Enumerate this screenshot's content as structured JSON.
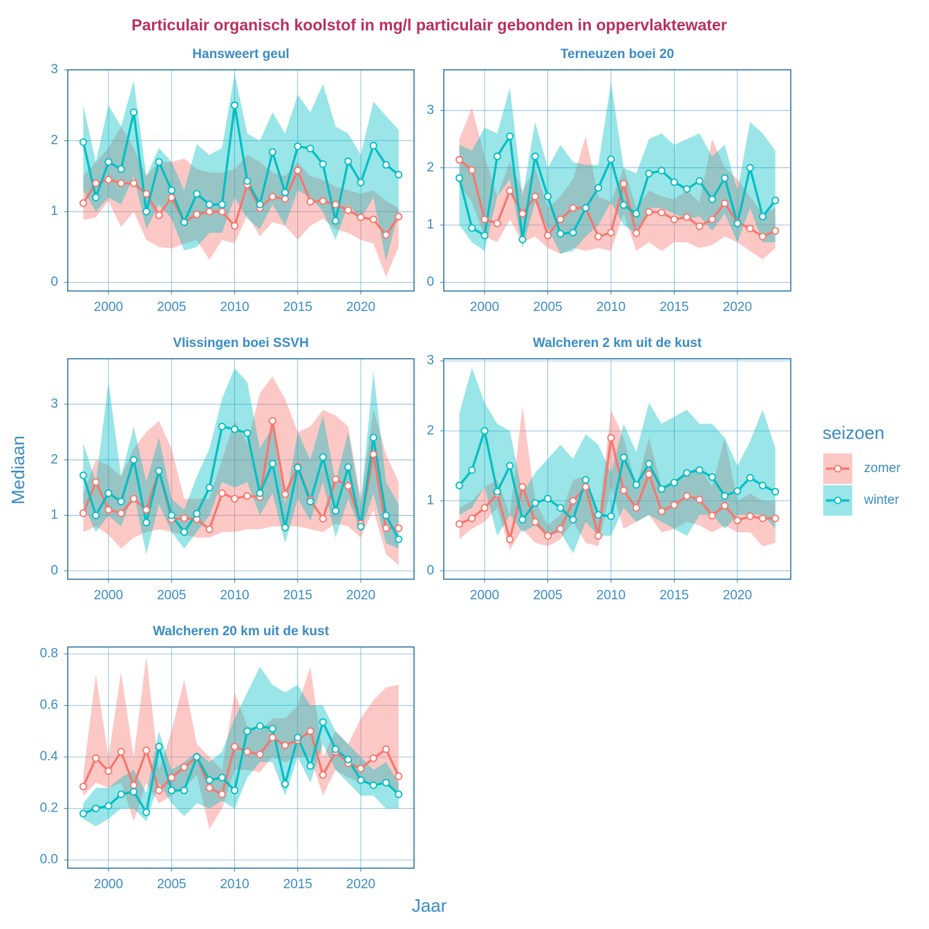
{
  "title": "Particulair organisch koolstof in mg/l particulair gebonden in oppervlaktewater",
  "x_label": "Jaar",
  "y_label": "Mediaan",
  "legend_title": "seizoen",
  "chart_data": [
    {
      "type": "line",
      "title": "Hansweert geul",
      "x": [
        1998,
        1999,
        2000,
        2001,
        2002,
        2003,
        2004,
        2005,
        2006,
        2007,
        2008,
        2009,
        2010,
        2011,
        2012,
        2013,
        2014,
        2015,
        2016,
        2017,
        2018,
        2019,
        2020,
        2021,
        2022,
        2023
      ],
      "xlim": [
        1996.77,
        2024.22
      ],
      "xticks": [
        2000,
        2005,
        2010,
        2015,
        2020
      ],
      "ylim": [
        -0.12,
        3.0
      ],
      "yticks": [
        0,
        1,
        2,
        3
      ],
      "grid": true,
      "series": [
        {
          "name": "zomer",
          "color": "#F8766D",
          "values": [
            1.12,
            1.4,
            1.45,
            1.4,
            1.4,
            1.25,
            0.95,
            1.2,
            0.85,
            0.96,
            1.0,
            1.0,
            0.8,
            1.38,
            1.05,
            1.21,
            1.18,
            1.58,
            1.14,
            1.15,
            1.1,
            1.02,
            0.92,
            0.89,
            0.67,
            0.93
          ],
          "lower": [
            0.88,
            0.92,
            1.15,
            0.78,
            1.0,
            0.6,
            0.5,
            0.48,
            0.55,
            0.6,
            0.32,
            0.6,
            0.55,
            0.95,
            0.65,
            0.85,
            0.8,
            0.6,
            0.8,
            0.9,
            0.75,
            0.7,
            0.6,
            0.55,
            0.08,
            0.5
          ],
          "upper": [
            1.5,
            1.7,
            1.9,
            2.2,
            1.9,
            1.5,
            1.7,
            1.7,
            1.75,
            1.6,
            1.55,
            1.55,
            1.6,
            1.8,
            1.7,
            1.55,
            1.5,
            1.7,
            1.5,
            1.45,
            1.35,
            1.3,
            1.25,
            1.3,
            1.15,
            1.05
          ]
        },
        {
          "name": "winter",
          "color": "#00BFC4",
          "values": [
            1.98,
            1.2,
            1.7,
            1.6,
            2.4,
            1.0,
            1.7,
            1.3,
            0.85,
            1.25,
            1.1,
            1.1,
            2.5,
            1.43,
            1.1,
            1.84,
            1.27,
            1.92,
            1.89,
            1.67,
            0.87,
            1.71,
            1.41,
            1.93,
            1.66,
            1.52
          ],
          "lower": [
            1.3,
            1.0,
            1.2,
            1.1,
            1.5,
            0.75,
            1.1,
            0.9,
            0.45,
            0.5,
            0.7,
            0.7,
            1.2,
            0.9,
            0.75,
            1.1,
            0.8,
            1.3,
            1.2,
            1.0,
            0.6,
            1.1,
            0.9,
            1.2,
            0.3,
            1.0
          ],
          "upper": [
            2.5,
            1.7,
            2.5,
            2.2,
            2.85,
            1.5,
            1.9,
            1.7,
            1.3,
            1.95,
            1.8,
            1.9,
            2.95,
            2.1,
            2.0,
            2.4,
            2.1,
            2.65,
            2.4,
            2.8,
            2.2,
            2.1,
            1.8,
            2.55,
            2.35,
            2.15
          ]
        }
      ]
    },
    {
      "type": "line",
      "title": "Terneuzen boei 20",
      "x": [
        1998,
        1999,
        2000,
        2001,
        2002,
        2003,
        2004,
        2005,
        2006,
        2007,
        2008,
        2009,
        2010,
        2011,
        2012,
        2013,
        2014,
        2015,
        2016,
        2017,
        2018,
        2019,
        2020,
        2021,
        2022,
        2023
      ],
      "xlim": [
        1996.77,
        2024.22
      ],
      "xticks": [
        2000,
        2005,
        2010,
        2015,
        2020
      ],
      "ylim": [
        -0.15,
        3.71
      ],
      "yticks": [
        0,
        1,
        2,
        3
      ],
      "grid": true,
      "series": [
        {
          "name": "zomer",
          "color": "#F8766D",
          "values": [
            2.14,
            1.96,
            1.1,
            1.03,
            1.6,
            1.2,
            1.5,
            0.82,
            1.1,
            1.3,
            1.3,
            0.8,
            0.87,
            1.72,
            0.86,
            1.23,
            1.22,
            1.1,
            1.14,
            0.98,
            1.1,
            1.38,
            1.05,
            0.94,
            0.8,
            0.9
          ],
          "lower": [
            1.7,
            1.4,
            0.8,
            0.7,
            1.1,
            0.7,
            0.8,
            0.6,
            0.5,
            0.6,
            0.55,
            0.6,
            0.55,
            1.2,
            0.55,
            0.7,
            0.55,
            0.7,
            0.7,
            0.6,
            0.65,
            0.8,
            0.7,
            0.55,
            0.4,
            0.6
          ],
          "upper": [
            2.5,
            3.05,
            2.2,
            1.5,
            2.1,
            1.6,
            2.0,
            1.3,
            1.5,
            1.8,
            2.55,
            1.5,
            1.4,
            2.0,
            1.3,
            1.6,
            1.5,
            1.45,
            1.6,
            1.4,
            2.5,
            2.0,
            1.8,
            1.5,
            1.2,
            1.3
          ]
        },
        {
          "name": "winter",
          "color": "#00BFC4",
          "values": [
            1.82,
            0.95,
            0.82,
            2.2,
            2.55,
            0.75,
            2.2,
            1.5,
            0.85,
            0.87,
            1.3,
            1.65,
            2.15,
            1.35,
            1.2,
            1.9,
            1.95,
            1.75,
            1.63,
            1.77,
            1.45,
            1.82,
            1.03,
            2.0,
            1.15,
            1.43
          ],
          "lower": [
            1.0,
            0.7,
            0.55,
            1.5,
            1.8,
            0.6,
            1.4,
            0.95,
            0.5,
            0.55,
            0.8,
            1.0,
            1.4,
            1.0,
            0.85,
            1.3,
            1.3,
            1.2,
            1.1,
            1.15,
            0.9,
            1.2,
            0.7,
            1.3,
            0.7,
            0.7
          ],
          "upper": [
            2.4,
            2.3,
            2.7,
            2.6,
            3.4,
            1.5,
            2.8,
            2.0,
            2.4,
            2.1,
            2.05,
            2.05,
            3.5,
            2.0,
            1.9,
            2.5,
            2.6,
            2.4,
            2.5,
            2.6,
            2.2,
            2.4,
            1.6,
            2.8,
            2.6,
            2.3
          ]
        }
      ]
    },
    {
      "type": "line",
      "title": "Vlissingen boei SSVH",
      "x": [
        1998,
        1999,
        2000,
        2001,
        2002,
        2003,
        2004,
        2005,
        2006,
        2007,
        2008,
        2009,
        2010,
        2011,
        2012,
        2013,
        2014,
        2015,
        2016,
        2017,
        2018,
        2019,
        2020,
        2021,
        2022,
        2023
      ],
      "xlim": [
        1996.77,
        2024.22
      ],
      "xticks": [
        2000,
        2005,
        2010,
        2015,
        2020
      ],
      "ylim": [
        -0.15,
        3.82
      ],
      "yticks": [
        0,
        1,
        2,
        3
      ],
      "grid": true,
      "series": [
        {
          "name": "zomer",
          "color": "#F8766D",
          "values": [
            1.04,
            1.6,
            1.1,
            1.04,
            1.3,
            1.1,
            1.8,
            0.93,
            0.95,
            0.93,
            0.75,
            1.4,
            1.3,
            1.35,
            1.33,
            2.7,
            1.38,
            1.88,
            1.28,
            0.94,
            1.65,
            1.53,
            0.85,
            2.1,
            0.77,
            0.77
          ],
          "lower": [
            0.7,
            0.8,
            0.65,
            0.4,
            0.6,
            0.7,
            0.75,
            0.7,
            0.65,
            0.6,
            0.6,
            0.7,
            0.7,
            0.75,
            0.75,
            0.8,
            0.8,
            0.8,
            0.75,
            0.7,
            0.85,
            0.8,
            0.6,
            1.1,
            0.3,
            0.1
          ],
          "upper": [
            1.4,
            2.0,
            1.9,
            1.7,
            2.2,
            2.5,
            2.7,
            2.2,
            1.3,
            1.3,
            1.3,
            2.0,
            2.7,
            2.3,
            3.2,
            3.5,
            3.1,
            2.5,
            2.6,
            2.9,
            2.8,
            2.6,
            1.3,
            2.9,
            2.1,
            1.6
          ]
        },
        {
          "name": "winter",
          "color": "#00BFC4",
          "values": [
            1.72,
            1.0,
            1.4,
            1.25,
            2.0,
            0.87,
            1.8,
            1.0,
            0.7,
            1.03,
            1.5,
            2.6,
            2.55,
            2.48,
            1.4,
            1.93,
            0.78,
            1.86,
            1.25,
            2.05,
            1.08,
            1.87,
            0.8,
            2.4,
            1.0,
            0.57
          ],
          "lower": [
            1.2,
            0.7,
            1.0,
            0.8,
            1.4,
            0.3,
            1.2,
            0.7,
            0.4,
            0.7,
            1.0,
            1.6,
            1.5,
            1.6,
            1.0,
            1.4,
            0.5,
            1.3,
            0.9,
            1.6,
            0.6,
            1.3,
            0.7,
            1.4,
            0.5,
            0.4
          ],
          "upper": [
            2.3,
            1.6,
            3.4,
            1.7,
            2.6,
            1.6,
            2.4,
            1.3,
            1.1,
            1.7,
            2.2,
            3.1,
            3.65,
            3.4,
            2.2,
            2.6,
            1.2,
            2.5,
            2.0,
            2.8,
            1.6,
            2.5,
            1.2,
            3.6,
            1.6,
            1.2
          ]
        }
      ]
    },
    {
      "type": "line",
      "title": "Walcheren 2 km uit de kust",
      "x": [
        1998,
        1999,
        2000,
        2001,
        2002,
        2003,
        2004,
        2005,
        2006,
        2007,
        2008,
        2009,
        2010,
        2011,
        2012,
        2013,
        2014,
        2015,
        2016,
        2017,
        2018,
        2019,
        2020,
        2021,
        2022,
        2023
      ],
      "xlim": [
        1996.77,
        2024.22
      ],
      "xticks": [
        2000,
        2005,
        2010,
        2015,
        2020
      ],
      "ylim": [
        -0.12,
        3.03
      ],
      "yticks": [
        0,
        1,
        2,
        3
      ],
      "grid": true,
      "series": [
        {
          "name": "zomer",
          "color": "#F8766D",
          "values": [
            0.67,
            0.75,
            0.9,
            1.1,
            0.45,
            1.2,
            0.7,
            0.5,
            0.6,
            1.0,
            1.2,
            0.5,
            1.9,
            1.15,
            0.9,
            1.38,
            0.85,
            0.94,
            1.07,
            1.02,
            0.79,
            0.93,
            0.72,
            0.78,
            0.75,
            0.75
          ],
          "lower": [
            0.45,
            0.6,
            0.7,
            0.9,
            0.3,
            0.6,
            0.4,
            0.35,
            0.45,
            0.7,
            0.4,
            0.35,
            1.2,
            0.6,
            0.7,
            0.8,
            0.55,
            0.6,
            0.7,
            0.65,
            0.55,
            0.65,
            0.55,
            0.55,
            0.35,
            0.4
          ],
          "upper": [
            0.9,
            1.0,
            1.2,
            1.3,
            0.8,
            2.35,
            1.0,
            0.65,
            0.8,
            1.3,
            1.35,
            0.7,
            2.3,
            1.9,
            1.2,
            1.9,
            1.2,
            1.3,
            1.4,
            1.5,
            1.2,
            1.9,
            1.0,
            1.1,
            1.0,
            1.0
          ]
        },
        {
          "name": "winter",
          "color": "#00BFC4",
          "values": [
            1.22,
            1.44,
            2.0,
            1.13,
            1.5,
            0.73,
            0.97,
            1.03,
            0.9,
            0.73,
            1.3,
            0.8,
            0.78,
            1.62,
            1.23,
            1.53,
            1.17,
            1.26,
            1.4,
            1.44,
            1.34,
            1.07,
            1.14,
            1.33,
            1.22,
            1.13
          ],
          "lower": [
            0.8,
            0.9,
            1.2,
            0.5,
            0.8,
            0.55,
            0.65,
            0.5,
            0.55,
            0.25,
            0.7,
            0.5,
            0.5,
            0.9,
            0.7,
            0.8,
            0.7,
            0.6,
            0.5,
            0.8,
            0.8,
            0.6,
            0.8,
            0.8,
            0.8,
            0.6
          ],
          "upper": [
            2.25,
            2.9,
            2.4,
            2.1,
            2.0,
            1.1,
            1.4,
            1.6,
            1.8,
            1.6,
            1.95,
            1.8,
            1.4,
            2.1,
            1.7,
            2.4,
            2.1,
            2.2,
            2.3,
            2.1,
            2.1,
            1.9,
            1.5,
            1.85,
            2.3,
            1.75
          ]
        }
      ]
    },
    {
      "type": "line",
      "title": "Walcheren 20 km uit de kust",
      "x": [
        1998,
        1999,
        2000,
        2001,
        2002,
        2003,
        2004,
        2005,
        2006,
        2007,
        2008,
        2009,
        2010,
        2011,
        2012,
        2013,
        2014,
        2015,
        2016,
        2017,
        2018,
        2019,
        2020,
        2021,
        2022,
        2023
      ],
      "xlim": [
        1996.77,
        2024.22
      ],
      "xticks": [
        2000,
        2005,
        2010,
        2015,
        2020
      ],
      "ylim": [
        -0.032,
        0.827
      ],
      "yticks": [
        {
          "value": 0,
          "label": "0.0"
        },
        0.2,
        0.4,
        0.6,
        0.8
      ],
      "grid": true,
      "series": [
        {
          "name": "zomer",
          "color": "#F8766D",
          "values": [
            0.285,
            0.395,
            0.345,
            0.42,
            0.29,
            0.425,
            0.27,
            0.32,
            0.36,
            0.4,
            0.28,
            0.255,
            0.44,
            0.42,
            0.41,
            0.475,
            0.445,
            0.465,
            0.5,
            0.33,
            0.42,
            0.375,
            0.355,
            0.395,
            0.43,
            0.325
          ],
          "lower": [
            0.25,
            0.3,
            0.28,
            0.3,
            0.15,
            0.3,
            0.22,
            0.25,
            0.28,
            0.33,
            0.12,
            0.2,
            0.35,
            0.35,
            0.34,
            0.4,
            0.38,
            0.4,
            0.4,
            0.25,
            0.35,
            0.32,
            0.3,
            0.3,
            0.3,
            0.25
          ],
          "upper": [
            0.33,
            0.72,
            0.4,
            0.73,
            0.4,
            0.79,
            0.35,
            0.5,
            0.7,
            0.45,
            0.4,
            0.35,
            0.65,
            0.52,
            0.5,
            0.55,
            0.55,
            0.6,
            0.75,
            0.4,
            0.5,
            0.45,
            0.55,
            0.62,
            0.67,
            0.68
          ]
        },
        {
          "name": "winter",
          "color": "#00BFC4",
          "values": [
            0.18,
            0.2,
            0.21,
            0.255,
            0.265,
            0.185,
            0.44,
            0.27,
            0.27,
            0.4,
            0.31,
            0.32,
            0.27,
            0.5,
            0.52,
            0.51,
            0.295,
            0.475,
            0.365,
            0.535,
            0.43,
            0.39,
            0.31,
            0.29,
            0.3,
            0.255
          ],
          "lower": [
            0.16,
            0.13,
            0.16,
            0.2,
            0.2,
            0.15,
            0.3,
            0.22,
            0.17,
            0.22,
            0.2,
            0.23,
            0.2,
            0.32,
            0.38,
            0.38,
            0.25,
            0.4,
            0.3,
            0.45,
            0.35,
            0.3,
            0.25,
            0.25,
            0.2,
            0.2
          ],
          "upper": [
            0.22,
            0.28,
            0.28,
            0.32,
            0.35,
            0.26,
            0.5,
            0.35,
            0.38,
            0.42,
            0.38,
            0.42,
            0.55,
            0.65,
            0.75,
            0.68,
            0.65,
            0.68,
            0.6,
            0.6,
            0.5,
            0.45,
            0.4,
            0.35,
            0.38,
            0.3
          ]
        }
      ]
    }
  ]
}
